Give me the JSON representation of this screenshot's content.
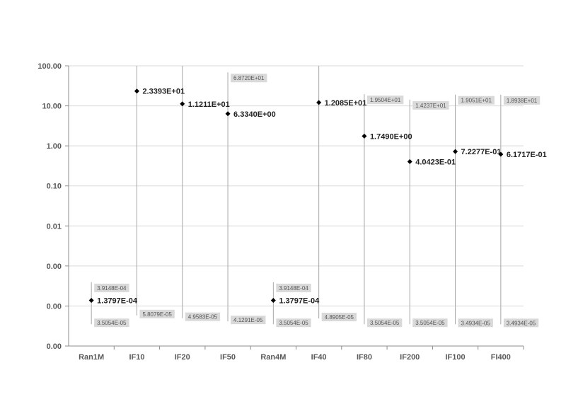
{
  "chart_data": {
    "type": "scatter",
    "title": "",
    "xlabel": "",
    "ylabel": "",
    "y_scale": "log",
    "ylim": [
      1e-05,
      100
    ],
    "grid": true,
    "y_ticks": [
      {
        "value": 100,
        "label": "100.00"
      },
      {
        "value": 10,
        "label": "10.00"
      },
      {
        "value": 1,
        "label": "1.00"
      },
      {
        "value": 0.1,
        "label": "0.10"
      },
      {
        "value": 0.01,
        "label": "0.01"
      },
      {
        "value": 0.001,
        "label": "0.00"
      },
      {
        "value": 0.0001,
        "label": "0.00"
      },
      {
        "value": 1e-05,
        "label": "0.00"
      }
    ],
    "categories": [
      "Ran1M",
      "IF10",
      "IF20",
      "IF50",
      "Ran4M",
      "IF40",
      "IF80",
      "IF200",
      "IF100",
      "FI400"
    ],
    "points": [
      {
        "category": "Ran1M",
        "value": 0.00013797,
        "value_label": "1.3797E-04",
        "high": 0.00039148,
        "high_label": "3.9148E-04",
        "low": 3.5054e-05,
        "low_label": "3.5054E-05"
      },
      {
        "category": "IF10",
        "value": 23.393,
        "value_label": "2.3393E+01",
        "high": 100,
        "high_label": "",
        "low": 5.8079e-05,
        "low_label": "5.8079E-05"
      },
      {
        "category": "IF20",
        "value": 11.211,
        "value_label": "1.1211E+01",
        "high": 100,
        "high_label": "",
        "low": 4.9583e-05,
        "low_label": "4.9583E-05"
      },
      {
        "category": "IF50",
        "value": 6.334,
        "value_label": "6.3340E+00",
        "high": 68.72,
        "high_label": "6.8720E+01",
        "low": 4.1291e-05,
        "low_label": "4.1291E-05"
      },
      {
        "category": "Ran4M",
        "value": 0.00013797,
        "value_label": "1.3797E-04",
        "high": 0.00039148,
        "high_label": "3.9148E-04",
        "low": 3.5054e-05,
        "low_label": "3.5054E-05"
      },
      {
        "category": "IF40",
        "value": 12.085,
        "value_label": "1.2085E+01",
        "high": 100,
        "high_label": "",
        "low": 4.8905e-05,
        "low_label": "4.8905E-05"
      },
      {
        "category": "IF80",
        "value": 1.749,
        "value_label": "1.7490E+00",
        "high": 19.504,
        "high_label": "1.9504E+01",
        "low": 3.5054e-05,
        "low_label": "3.5054E-05"
      },
      {
        "category": "IF200",
        "value": 0.40423,
        "value_label": "4.0423E-01",
        "high": 14.237,
        "high_label": "1.4237E+01",
        "low": 3.5054e-05,
        "low_label": "3.5054E-05"
      },
      {
        "category": "IF100",
        "value": 0.72277,
        "value_label": "7.2277E-01",
        "high": 19.051,
        "high_label": "1.9051E+01",
        "low": 3.4934e-05,
        "low_label": "3.4934E-05"
      },
      {
        "category": "FI400",
        "value": 0.61717,
        "value_label": "6.1717E-01",
        "high": 18.938,
        "high_label": "1.8938E+01",
        "low": 3.4934e-05,
        "low_label": "3.4934E-05"
      }
    ]
  }
}
